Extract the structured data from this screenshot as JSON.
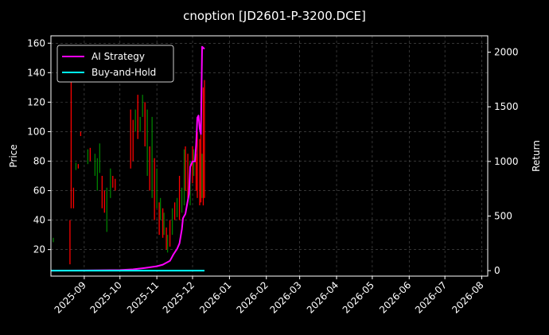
{
  "chart_data": {
    "type": "line",
    "title": "cnoption [JD2601-P-3200.DCE]",
    "xlabel": "",
    "ylabel": "Price",
    "y2label": "Return",
    "x_range": [
      "2025-08-04",
      "2026-08-06"
    ],
    "ylim": [
      2,
      165
    ],
    "y2lim": [
      -50,
      2150
    ],
    "x_ticks": [
      "2025-09",
      "2025-10",
      "2025-11",
      "2025-12",
      "2026-01",
      "2026-02",
      "2026-03",
      "2026-04",
      "2026-05",
      "2026-06",
      "2026-07",
      "2026-08"
    ],
    "y_ticks": [
      20,
      40,
      60,
      80,
      100,
      120,
      140,
      160
    ],
    "y2_ticks": [
      0,
      500,
      1000,
      1500,
      2000
    ],
    "grid": true,
    "legend_position": "top-left",
    "colors": {
      "up": "#008000",
      "down": "#ff0000",
      "strategy": "#ff00ff",
      "buy_hold": "#00ffff",
      "grid": "#555555",
      "axis": "#ffffff",
      "background": "#000000"
    },
    "candles": [
      {
        "date": "2025-08-06",
        "low": 25,
        "high": 28,
        "dir": "up"
      },
      {
        "date": "2025-08-20",
        "low": 10,
        "high": 40,
        "dir": "down"
      },
      {
        "date": "2025-08-21",
        "low": 48,
        "high": 145,
        "dir": "down"
      },
      {
        "date": "2025-08-23",
        "low": 48,
        "high": 62,
        "dir": "down"
      },
      {
        "date": "2025-08-25",
        "low": 74,
        "high": 79,
        "dir": "up"
      },
      {
        "date": "2025-08-27",
        "low": 75,
        "high": 78,
        "dir": "down"
      },
      {
        "date": "2025-08-29",
        "low": 97,
        "high": 100,
        "dir": "down"
      },
      {
        "date": "2025-09-04",
        "low": 78,
        "high": 88,
        "dir": "up"
      },
      {
        "date": "2025-09-06",
        "low": 80,
        "high": 89,
        "dir": "down"
      },
      {
        "date": "2025-09-10",
        "low": 70,
        "high": 85,
        "dir": "up"
      },
      {
        "date": "2025-09-12",
        "low": 60,
        "high": 82,
        "dir": "up"
      },
      {
        "date": "2025-09-14",
        "low": 72,
        "high": 92,
        "dir": "up"
      },
      {
        "date": "2025-09-16",
        "low": 48,
        "high": 70,
        "dir": "down"
      },
      {
        "date": "2025-09-18",
        "low": 45,
        "high": 60,
        "dir": "down"
      },
      {
        "date": "2025-09-20",
        "low": 32,
        "high": 62,
        "dir": "up"
      },
      {
        "date": "2025-09-23",
        "low": 55,
        "high": 75,
        "dir": "up"
      },
      {
        "date": "2025-09-25",
        "low": 62,
        "high": 70,
        "dir": "down"
      },
      {
        "date": "2025-09-27",
        "low": 60,
        "high": 68,
        "dir": "down"
      },
      {
        "date": "2025-10-10",
        "low": 75,
        "high": 115,
        "dir": "down"
      },
      {
        "date": "2025-10-12",
        "low": 80,
        "high": 108,
        "dir": "down"
      },
      {
        "date": "2025-10-14",
        "low": 100,
        "high": 115,
        "dir": "up"
      },
      {
        "date": "2025-10-16",
        "low": 95,
        "high": 125,
        "dir": "down"
      },
      {
        "date": "2025-10-18",
        "low": 100,
        "high": 110,
        "dir": "up"
      },
      {
        "date": "2025-10-20",
        "low": 110,
        "high": 125,
        "dir": "up"
      },
      {
        "date": "2025-10-22",
        "low": 90,
        "high": 120,
        "dir": "down"
      },
      {
        "date": "2025-10-24",
        "low": 70,
        "high": 115,
        "dir": "up"
      },
      {
        "date": "2025-10-26",
        "low": 60,
        "high": 90,
        "dir": "down"
      },
      {
        "date": "2025-10-28",
        "low": 55,
        "high": 110,
        "dir": "up"
      },
      {
        "date": "2025-10-30",
        "low": 40,
        "high": 82,
        "dir": "down"
      },
      {
        "date": "2025-11-01",
        "low": 48,
        "high": 75,
        "dir": "up"
      },
      {
        "date": "2025-11-03",
        "low": 30,
        "high": 52,
        "dir": "down"
      },
      {
        "date": "2025-11-04",
        "low": 40,
        "high": 55,
        "dir": "up"
      },
      {
        "date": "2025-11-06",
        "low": 28,
        "high": 48,
        "dir": "down"
      },
      {
        "date": "2025-11-07",
        "low": 30,
        "high": 45,
        "dir": "up"
      },
      {
        "date": "2025-11-09",
        "low": 20,
        "high": 35,
        "dir": "down"
      },
      {
        "date": "2025-11-10",
        "low": 18,
        "high": 30,
        "dir": "up"
      },
      {
        "date": "2025-11-12",
        "low": 22,
        "high": 40,
        "dir": "down"
      },
      {
        "date": "2025-11-14",
        "low": 30,
        "high": 48,
        "dir": "up"
      },
      {
        "date": "2025-11-16",
        "low": 40,
        "high": 52,
        "dir": "down"
      },
      {
        "date": "2025-11-18",
        "low": 42,
        "high": 55,
        "dir": "up"
      },
      {
        "date": "2025-11-20",
        "low": 40,
        "high": 70,
        "dir": "down"
      },
      {
        "date": "2025-11-22",
        "low": 45,
        "high": 62,
        "dir": "up"
      },
      {
        "date": "2025-11-24",
        "low": 50,
        "high": 88,
        "dir": "up"
      },
      {
        "date": "2025-11-25",
        "low": 60,
        "high": 90,
        "dir": "down"
      },
      {
        "date": "2025-11-27",
        "low": 55,
        "high": 85,
        "dir": "down"
      },
      {
        "date": "2025-11-29",
        "low": 50,
        "high": 80,
        "dir": "up"
      },
      {
        "date": "2025-12-01",
        "low": 65,
        "high": 90,
        "dir": "down"
      },
      {
        "date": "2025-12-02",
        "low": 70,
        "high": 88,
        "dir": "up"
      },
      {
        "date": "2025-12-04",
        "low": 60,
        "high": 85,
        "dir": "down"
      },
      {
        "date": "2025-12-05",
        "low": 55,
        "high": 100,
        "dir": "down"
      },
      {
        "date": "2025-12-07",
        "low": 50,
        "high": 95,
        "dir": "down"
      },
      {
        "date": "2025-12-08",
        "low": 52,
        "high": 110,
        "dir": "down"
      },
      {
        "date": "2025-12-09",
        "low": 55,
        "high": 85,
        "dir": "up"
      },
      {
        "date": "2025-12-10",
        "low": 50,
        "high": 130,
        "dir": "down"
      },
      {
        "date": "2025-12-11",
        "low": 55,
        "high": 135,
        "dir": "down"
      }
    ],
    "series": [
      {
        "name": "AI Strategy",
        "axis": "right",
        "points": [
          [
            "2025-08-04",
            0
          ],
          [
            "2025-09-01",
            2
          ],
          [
            "2025-10-01",
            5
          ],
          [
            "2025-10-12",
            12
          ],
          [
            "2025-10-22",
            25
          ],
          [
            "2025-11-01",
            40
          ],
          [
            "2025-11-06",
            55
          ],
          [
            "2025-11-12",
            90
          ],
          [
            "2025-11-15",
            150
          ],
          [
            "2025-11-18",
            200
          ],
          [
            "2025-11-20",
            250
          ],
          [
            "2025-11-22",
            380
          ],
          [
            "2025-11-23",
            480
          ],
          [
            "2025-11-25",
            520
          ],
          [
            "2025-11-26",
            580
          ],
          [
            "2025-11-28",
            700
          ],
          [
            "2025-11-29",
            950
          ],
          [
            "2025-12-01",
            1000
          ],
          [
            "2025-12-03",
            1000
          ],
          [
            "2025-12-04",
            1150
          ],
          [
            "2025-12-05",
            1400
          ],
          [
            "2025-12-06",
            1420
          ],
          [
            "2025-12-07",
            1300
          ],
          [
            "2025-12-08",
            1250
          ],
          [
            "2025-12-09",
            2050
          ],
          [
            "2025-12-10",
            2040
          ],
          [
            "2025-12-11",
            2030
          ]
        ]
      },
      {
        "name": "Buy-and-Hold",
        "axis": "right",
        "points": [
          [
            "2025-08-04",
            0
          ],
          [
            "2025-12-11",
            0
          ]
        ]
      }
    ]
  }
}
